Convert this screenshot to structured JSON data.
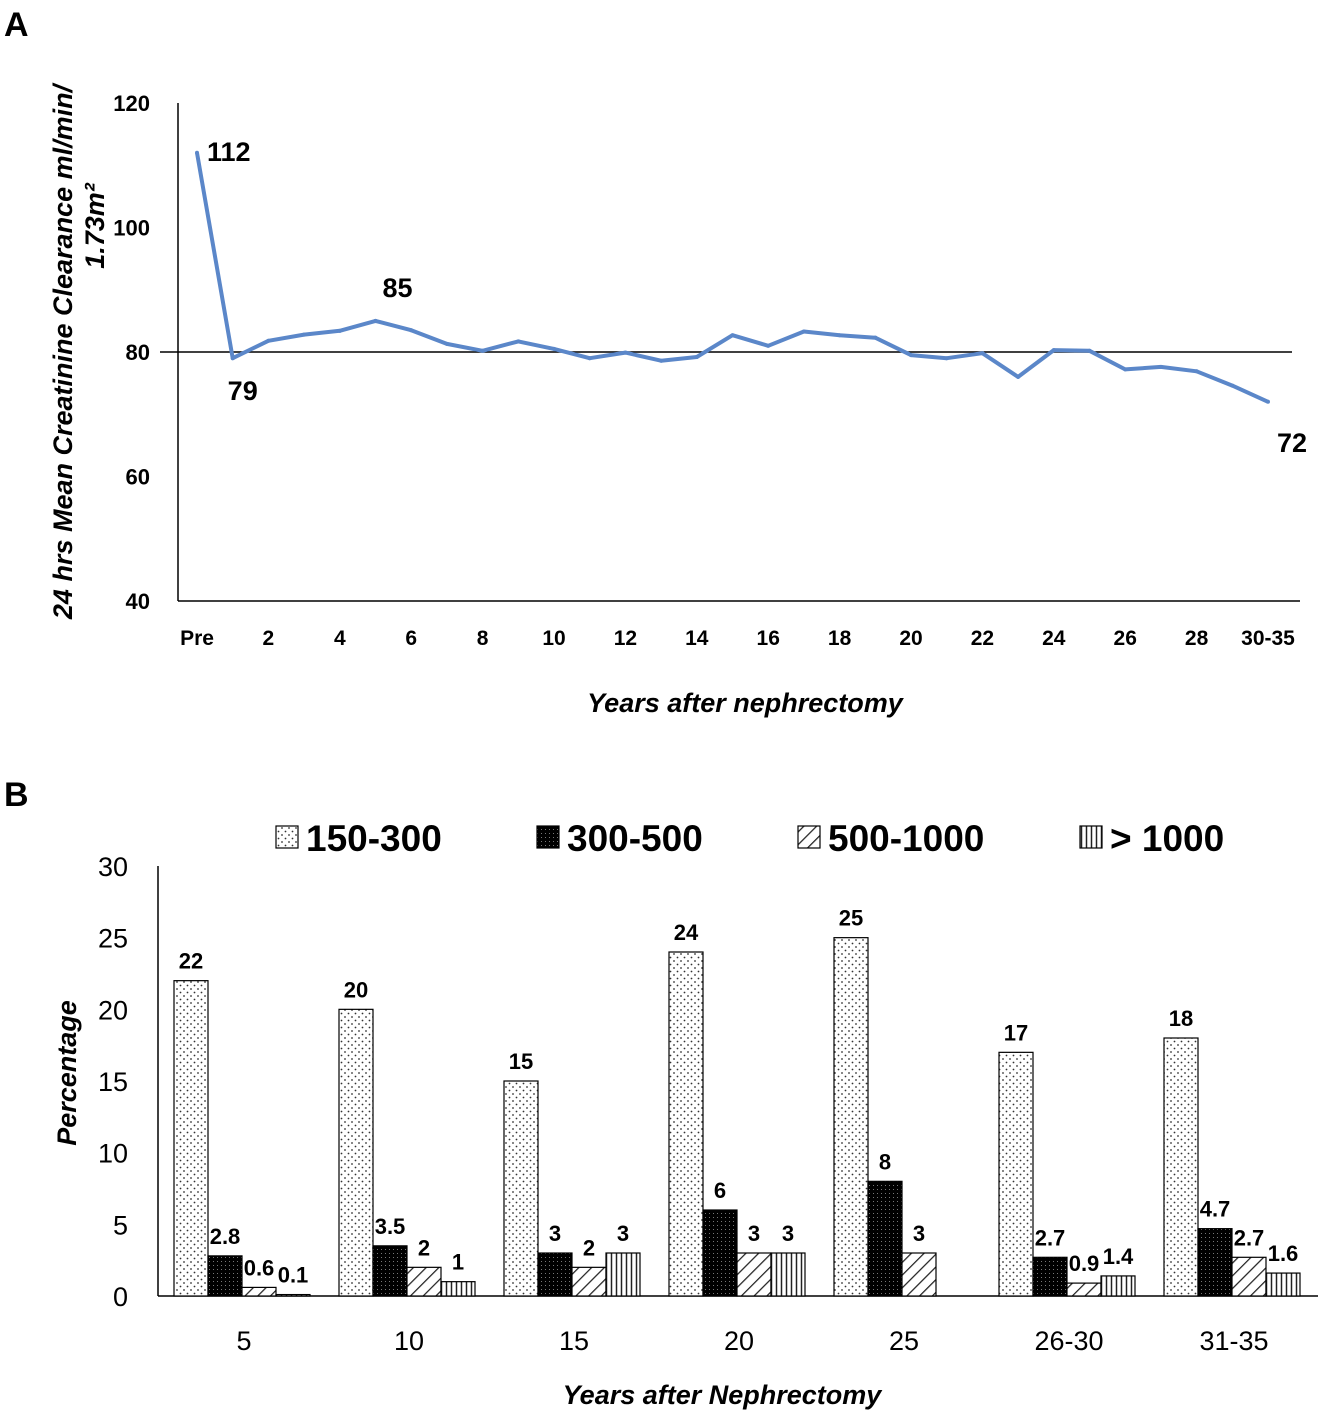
{
  "chart_data": [
    {
      "panel": "A",
      "type": "line",
      "title": "",
      "xlabel": "Years after nephrectomy",
      "ylabel": "24 hrs Mean Creatinine Clearance ml/min/",
      "ylabel2": "1.73m²",
      "ylim": [
        40,
        120
      ],
      "yticks": [
        "120",
        "100",
        "80",
        "60",
        "40"
      ],
      "xticks": [
        "Pre",
        "2",
        "4",
        "6",
        "8",
        "10",
        "12",
        "14",
        "16",
        "18",
        "20",
        "22",
        "24",
        "26",
        "28",
        "30-35"
      ],
      "reference_line": 80,
      "series": [
        {
          "name": "Mean creatinine clearance",
          "color": "#5b87c9",
          "x": [
            0,
            1,
            2,
            3,
            4,
            5,
            6,
            7,
            8,
            9,
            10,
            11,
            12,
            13,
            14,
            15,
            16,
            17,
            18,
            19,
            20,
            21,
            22,
            23,
            24,
            25,
            26,
            27,
            28,
            29,
            30
          ],
          "values": [
            112,
            79,
            81.8,
            82.8,
            83.4,
            85,
            83.5,
            81.3,
            80.2,
            81.7,
            80.5,
            79,
            79.9,
            78.6,
            79.2,
            82.7,
            81,
            83.3,
            82.7,
            82.3,
            79.5,
            79,
            79.8,
            76,
            80.3,
            80.2,
            77.2,
            77.6,
            76.9,
            74.6,
            72
          ]
        }
      ],
      "annotations": [
        {
          "text": "112",
          "x": 0,
          "y": 112
        },
        {
          "text": "79",
          "x": 1,
          "y": 79
        },
        {
          "text": "85",
          "x": 5,
          "y": 85
        },
        {
          "text": "72",
          "x": 30,
          "y": 72
        }
      ]
    },
    {
      "panel": "B",
      "type": "bar",
      "title": "",
      "xlabel": "Years after Nephrectomy",
      "ylabel": "Percentage",
      "ylim": [
        0,
        30
      ],
      "yticks": [
        "30",
        "25",
        "20",
        "15",
        "10",
        "5",
        "0"
      ],
      "categories": [
        "5",
        "10",
        "15",
        "20",
        "25",
        "26-30",
        "31-35"
      ],
      "series": [
        {
          "name": "150-300",
          "pattern": "dots",
          "values": [
            22,
            20,
            15,
            24,
            25,
            17,
            18
          ],
          "labels": [
            "22",
            "20",
            "15",
            "24",
            "25",
            "17",
            "18"
          ]
        },
        {
          "name": "300-500",
          "pattern": "dense-black",
          "values": [
            2.8,
            3.5,
            3,
            6,
            8,
            2.7,
            4.7
          ],
          "labels": [
            "2.8",
            "3.5",
            "3",
            "6",
            "8",
            "2.7",
            "4.7"
          ]
        },
        {
          "name": "500-1000",
          "pattern": "diagonal",
          "values": [
            0.6,
            2,
            2,
            3,
            3,
            0.9,
            2.7
          ],
          "labels": [
            "0.6",
            "2",
            "2",
            "3",
            "3",
            "0.9",
            "2.7"
          ]
        },
        {
          "name": "> 1000",
          "pattern": "vertical",
          "values": [
            0.1,
            1,
            3,
            3,
            null,
            1.4,
            1.6
          ],
          "labels": [
            "0.1",
            "1",
            "3",
            "3",
            "",
            "1.4",
            "1.6"
          ]
        }
      ],
      "legend_position": "top"
    }
  ]
}
